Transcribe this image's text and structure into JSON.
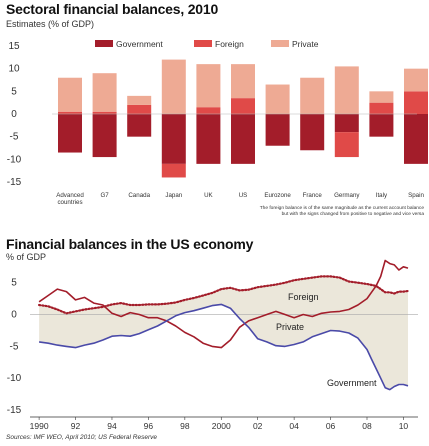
{
  "chart_data": [
    {
      "type": "bar",
      "title": "Sectoral financial balances, 2010",
      "subtitle": "Estimates (% of GDP)",
      "ylim": [
        -15,
        15
      ],
      "yticks": [
        15,
        10,
        5,
        0,
        -5,
        -10,
        -15
      ],
      "categories": [
        "Advanced countries",
        "G7",
        "Canada",
        "Japan",
        "UK",
        "US",
        "Eurozone",
        "France",
        "Germany",
        "Italy",
        "Spain"
      ],
      "category_lines": [
        [
          "Advanced",
          "countries"
        ],
        [
          "G7"
        ],
        [
          "Canada"
        ],
        [
          "Japan"
        ],
        [
          "UK"
        ],
        [
          "US"
        ],
        [
          "Eurozone"
        ],
        [
          "France"
        ],
        [
          "Germany"
        ],
        [
          "Italy"
        ],
        [
          "Spain"
        ]
      ],
      "series": [
        {
          "name": "Government",
          "color": "#a31d2a",
          "values": [
            -8.5,
            -9.5,
            -5,
            -11,
            -11,
            -11,
            -7,
            -8,
            -4,
            -5,
            -11
          ]
        },
        {
          "name": "Foreign",
          "color": "#e04a48",
          "values": [
            0.5,
            0.5,
            2,
            -3,
            1.5,
            3.5,
            0,
            0,
            -5.5,
            2.5,
            5
          ]
        },
        {
          "name": "Private",
          "color": "#eeaa94",
          "values": [
            7.5,
            8.5,
            2,
            12,
            9.5,
            7.5,
            6.5,
            8,
            10.5,
            2.5,
            5
          ]
        }
      ],
      "legend_placement": "top",
      "grid": false,
      "annotation": [
        "The foreign balance is of the same magnitude as the current account balance",
        "but with the signs changed from positive to negative and vice versa"
      ]
    },
    {
      "type": "line",
      "title": "Financial balances in the US economy",
      "subtitle": "% of GDP",
      "ylim": [
        -15,
        7
      ],
      "yticks": [
        5,
        0,
        -5,
        -10,
        -15
      ],
      "xlim": [
        1989.5,
        2010.8
      ],
      "xticks": [
        "1990",
        "92",
        "94",
        "96",
        "98",
        "2000",
        "02",
        "04",
        "06",
        "08",
        "10"
      ],
      "xtick_values": [
        1990,
        1992,
        1994,
        1996,
        1998,
        2000,
        2002,
        2004,
        2006,
        2008,
        2010
      ],
      "shaded_band": true,
      "series": [
        {
          "name": "Foreign",
          "color": "#a31d2a",
          "style": "dotted",
          "x": [
            1990,
            1990.5,
            1991,
            1991.5,
            1992,
            1992.5,
            1993,
            1993.5,
            1994,
            1994.5,
            1995,
            1995.5,
            1996,
            1996.5,
            1997,
            1997.5,
            1998,
            1998.5,
            1999,
            1999.5,
            2000,
            2000.5,
            2001,
            2001.5,
            2002,
            2002.5,
            2003,
            2003.5,
            2004,
            2004.5,
            2005,
            2005.5,
            2006,
            2006.5,
            2007,
            2007.5,
            2008,
            2008.5,
            2009,
            2009.25,
            2009.5,
            2009.75,
            2010,
            2010.25
          ],
          "y": [
            1.5,
            1.3,
            0.8,
            0.2,
            0.5,
            0.8,
            1.0,
            1.2,
            1.6,
            1.8,
            1.5,
            1.5,
            1.6,
            1.6,
            1.7,
            1.9,
            2.3,
            2.6,
            3.0,
            3.4,
            4.0,
            4.2,
            3.8,
            3.9,
            4.3,
            4.5,
            4.7,
            5.0,
            5.4,
            5.6,
            5.8,
            6.0,
            6.0,
            5.8,
            5.2,
            5.0,
            4.8,
            4.5,
            3.5,
            3.5,
            3.3,
            3.6,
            3.6,
            3.7
          ]
        },
        {
          "name": "Private",
          "color": "#a31d2a",
          "style": "solid",
          "x": [
            1990,
            1990.5,
            1991,
            1991.5,
            1992,
            1992.5,
            1993,
            1993.5,
            1994,
            1994.5,
            1995,
            1995.5,
            1996,
            1996.5,
            1997,
            1997.5,
            1998,
            1998.5,
            1999,
            1999.5,
            2000,
            2000.5,
            2001,
            2001.5,
            2002,
            2002.5,
            2003,
            2003.5,
            2004,
            2004.5,
            2005,
            2005.5,
            2006,
            2006.5,
            2007,
            2007.5,
            2008,
            2008.25,
            2008.5,
            2008.75,
            2009,
            2009.25,
            2009.5,
            2009.75,
            2010,
            2010.25
          ],
          "y": [
            2.0,
            3.0,
            4.0,
            3.6,
            2.3,
            2.7,
            1.8,
            1.5,
            0.2,
            -0.3,
            0.3,
            0.0,
            -0.5,
            -0.5,
            -1.0,
            -1.8,
            -2.8,
            -3.5,
            -4.5,
            -5.0,
            -5.2,
            -4.0,
            -2.0,
            -1.0,
            -0.5,
            0.0,
            0.5,
            0.0,
            -0.5,
            0.0,
            -0.3,
            0.2,
            0.4,
            0.5,
            0.8,
            1.5,
            2.5,
            3.5,
            4.5,
            6.0,
            8.5,
            8.0,
            7.8,
            7.0,
            7.5,
            7.3
          ]
        },
        {
          "name": "Government",
          "color": "#4a4aa8",
          "style": "solid",
          "x": [
            1990,
            1990.5,
            1991,
            1991.5,
            1992,
            1992.5,
            1993,
            1993.5,
            1994,
            1994.5,
            1995,
            1995.5,
            1996,
            1996.5,
            1997,
            1997.5,
            1998,
            1998.5,
            1999,
            1999.5,
            2000,
            2000.5,
            2001,
            2001.5,
            2002,
            2002.5,
            2003,
            2003.5,
            2004,
            2004.5,
            2005,
            2005.5,
            2006,
            2006.5,
            2007,
            2007.5,
            2008,
            2008.25,
            2008.5,
            2008.75,
            2009,
            2009.25,
            2009.5,
            2009.75,
            2010,
            2010.25
          ],
          "y": [
            -4.3,
            -4.5,
            -4.8,
            -5.0,
            -5.2,
            -4.8,
            -4.5,
            -4.0,
            -3.4,
            -3.3,
            -3.4,
            -3.0,
            -2.4,
            -1.8,
            -1.0,
            -0.2,
            0.3,
            0.6,
            1.0,
            1.4,
            1.6,
            1.0,
            -0.6,
            -2.0,
            -3.8,
            -4.3,
            -4.9,
            -5.0,
            -4.7,
            -4.3,
            -3.5,
            -3.0,
            -2.5,
            -2.6,
            -2.9,
            -3.7,
            -5.5,
            -7.0,
            -8.5,
            -10.0,
            -11.5,
            -11.8,
            -11.3,
            -11.0,
            -11.0,
            -11.2
          ]
        }
      ],
      "labels": {
        "foreign": "Foreign",
        "private": "Private",
        "government": "Government"
      },
      "source": "Sources: IMF WEO, April 2010; US Federal Reserve"
    }
  ]
}
